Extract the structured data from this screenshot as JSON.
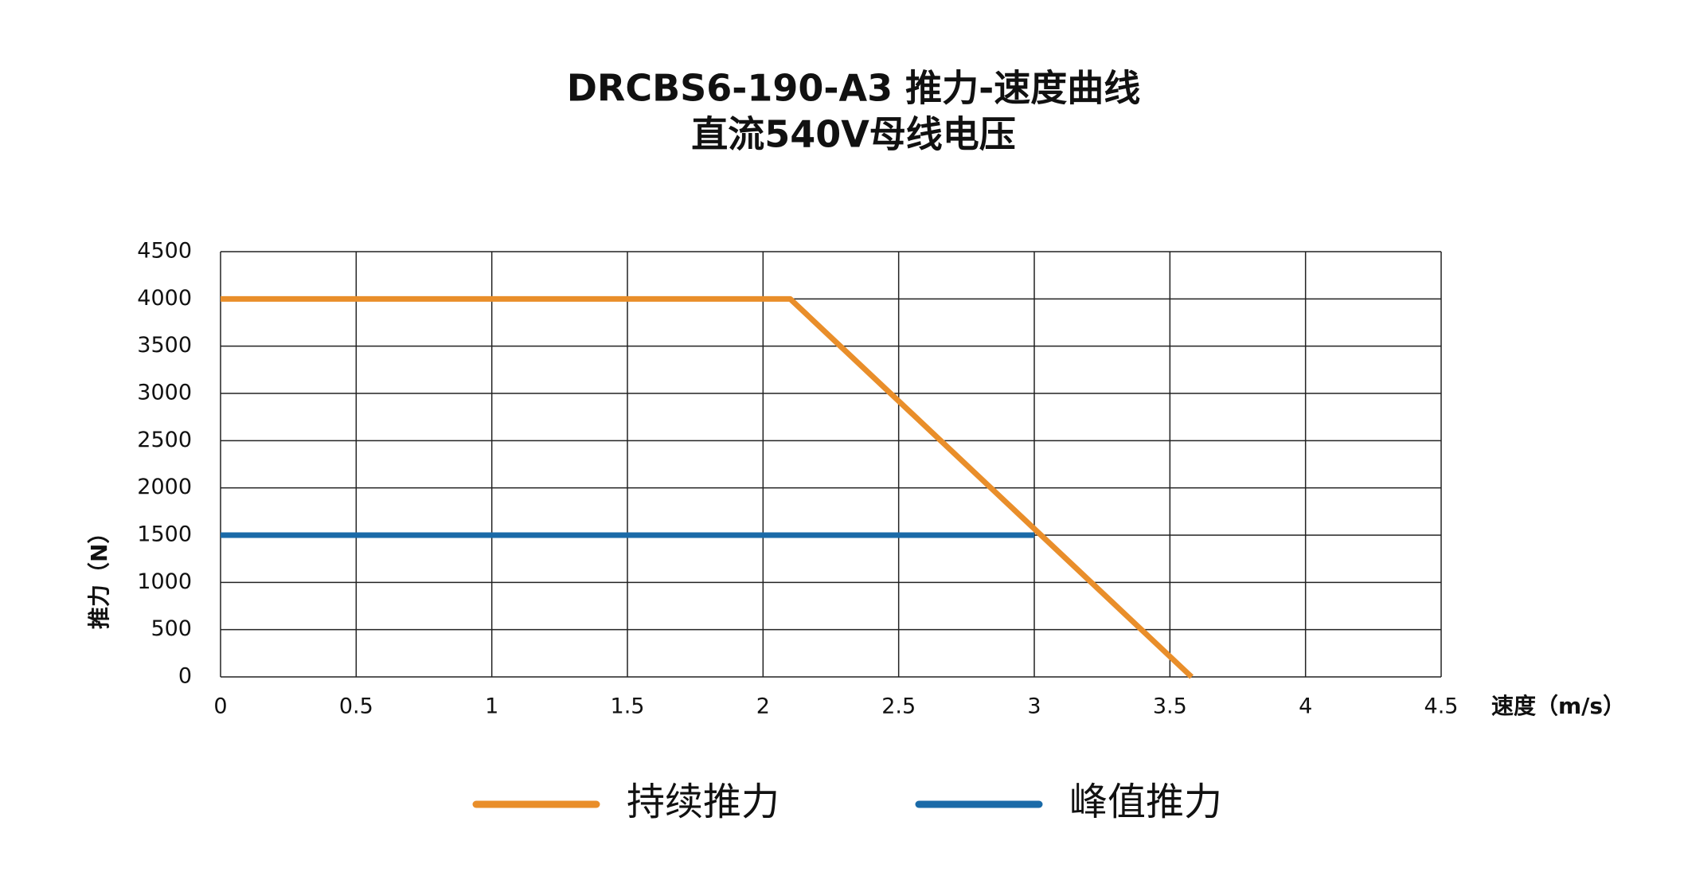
{
  "chart_data": {
    "type": "line",
    "title": "DRCBS6-190-A3 推力-速度曲线",
    "subtitle": "直流540V母线电压",
    "x_label": "速度（m/s）",
    "y_label": "推力（N）",
    "series": [
      {
        "name": "持续推力",
        "color": "#e98e2a",
        "x": [
          0,
          2.1,
          3.58
        ],
        "values": [
          4000,
          4000,
          0
        ]
      },
      {
        "name": "峰值推力",
        "color": "#1a6aa8",
        "x": [
          0,
          3
        ],
        "values": [
          1500,
          1500
        ]
      }
    ],
    "xlim": [
      0,
      4.5
    ],
    "xticks": [
      0,
      0.5,
      1,
      1.5,
      2,
      2.5,
      3,
      3.5,
      4,
      4.5
    ],
    "ylim": [
      0,
      4500
    ],
    "yticks": [
      0,
      500,
      1000,
      1500,
      2000,
      2500,
      3000,
      3500,
      4000,
      4500
    ],
    "grid": true,
    "legend": "bottom"
  }
}
